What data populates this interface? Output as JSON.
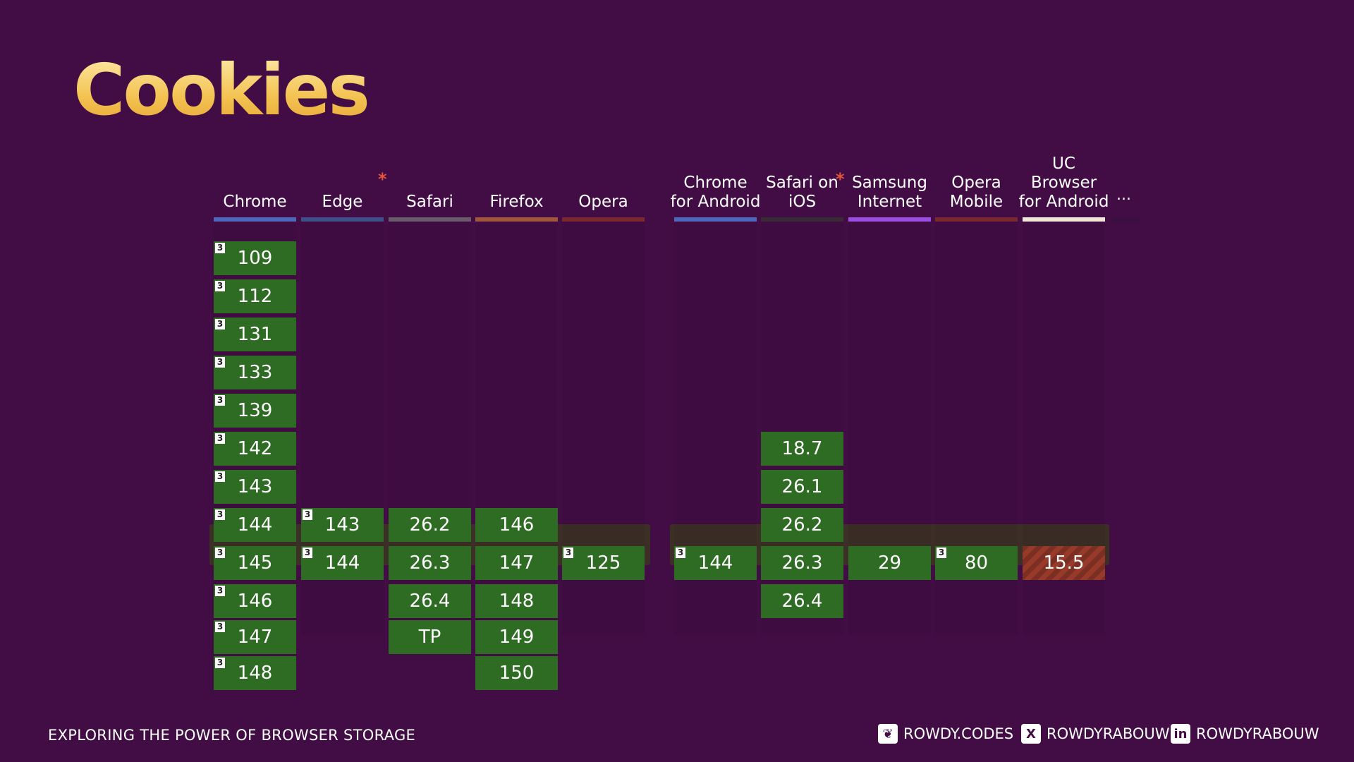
{
  "title": "Cookies",
  "footer": {
    "subtitle": "EXPLORING THE POWER OF BROWSER STORAGE",
    "links": [
      {
        "icon": "bluesky-icon",
        "glyph": "❦",
        "label": "ROWDY.CODES"
      },
      {
        "icon": "x-icon",
        "glyph": "X",
        "label": "ROWDYRABOUW"
      },
      {
        "icon": "linkedin-icon",
        "glyph": "in",
        "label": "ROWDYRABOUW"
      }
    ]
  },
  "more_label": "...",
  "note_marker": "3",
  "browsers": [
    {
      "name": "Chrome",
      "color": "#4e67b8",
      "star": false,
      "cells": [
        {
          "v": "109",
          "n": true
        },
        {
          "v": "112",
          "n": true
        },
        {
          "v": "131",
          "n": true
        },
        {
          "v": "133",
          "n": true
        },
        {
          "v": "139",
          "n": true
        },
        {
          "v": "142",
          "n": true
        },
        {
          "v": "143",
          "n": true
        },
        {
          "v": "144",
          "n": true
        },
        {
          "v": "145",
          "n": true
        },
        {
          "v": "146",
          "n": true
        },
        {
          "v": "147",
          "n": true
        },
        {
          "v": "148",
          "n": true
        }
      ]
    },
    {
      "name": "Edge",
      "color": "#3e4f8a",
      "star": true,
      "cells": [
        {
          "v": "143",
          "n": true
        },
        {
          "v": "144",
          "n": true
        }
      ]
    },
    {
      "name": "Safari",
      "color": "#6a5a6c",
      "star": false,
      "cells": [
        {
          "v": "26.2"
        },
        {
          "v": "26.3"
        },
        {
          "v": "26.4"
        },
        {
          "v": "TP"
        }
      ]
    },
    {
      "name": "Firefox",
      "color": "#a0563a",
      "star": false,
      "cells": [
        {
          "v": "146"
        },
        {
          "v": "147"
        },
        {
          "v": "148"
        },
        {
          "v": "149"
        },
        {
          "v": "150"
        }
      ]
    },
    {
      "name": "Opera",
      "color": "#7a2a2e",
      "star": false,
      "cells": [
        {
          "v": "125",
          "n": true
        }
      ]
    },
    {
      "name": "Chrome for Android",
      "color": "#4e67b8",
      "star": false,
      "cells": [
        {
          "v": "144",
          "n": true
        }
      ]
    },
    {
      "name": "Safari on iOS",
      "color": "#3a2a36",
      "star": true,
      "cells": [
        {
          "v": "18.7"
        },
        {
          "v": "26.1"
        },
        {
          "v": "26.2"
        },
        {
          "v": "26.3"
        },
        {
          "v": "26.4"
        }
      ]
    },
    {
      "name": "Samsung Internet",
      "color": "#9a4fe0",
      "star": false,
      "cells": [
        {
          "v": "29"
        }
      ]
    },
    {
      "name": "Opera Mobile",
      "color": "#7a2a2e",
      "star": false,
      "cells": [
        {
          "v": "80",
          "n": true
        }
      ]
    },
    {
      "name": "UC Browser for Android",
      "color": "#f2e6d9",
      "star": false,
      "cells": [
        {
          "v": "15.5",
          "striped": true
        }
      ]
    }
  ]
}
